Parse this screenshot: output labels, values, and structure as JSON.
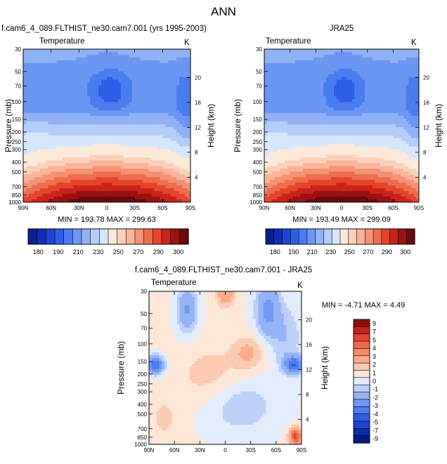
{
  "page_title": "ANN",
  "palette_abs": [
    "#0a1e8c",
    "#0f2eb4",
    "#1f45d6",
    "#2e5ee6",
    "#4a7cf0",
    "#6b97f3",
    "#8fb2f6",
    "#b3cdf9",
    "#d6e6fc",
    "#fde9da",
    "#fbd0b8",
    "#f8b497",
    "#f49276",
    "#ee6d4f",
    "#e3452c",
    "#c8241a",
    "#9a1212",
    "#6b0a0a"
  ],
  "palette_diff": [
    "#071a80",
    "#0c2ba8",
    "#1a43cf",
    "#2e5ee6",
    "#4c7ded",
    "#7098f1",
    "#95b4f6",
    "#bcd0fa",
    "#e3ecfd",
    "#fde6d6",
    "#fbcab0",
    "#f8ab8b",
    "#f48b69",
    "#ee6a4a",
    "#e14630",
    "#c5221a",
    "#8f0e0e"
  ],
  "chart_data": [
    {
      "type": "heatmap",
      "title_left": "f.cam6_4_089.FLTHIST_ne30.cam7.001 (yrs 1995-2003)",
      "variable_label": "Temperature",
      "units_label": "K",
      "xlabel": "",
      "ylabel": "Pressure (mb)",
      "y2label": "Height (km)",
      "x_ticks": [
        "90N",
        "60N",
        "30N",
        "0",
        "30S",
        "60S",
        "90S"
      ],
      "y_ticks": [
        30,
        50,
        70,
        100,
        150,
        200,
        250,
        300,
        400,
        500,
        700,
        850,
        1000
      ],
      "y2_ticks": [
        20,
        16,
        12,
        8,
        4
      ],
      "stats": "MIN = 193.78   MAX = 299.63",
      "colorbar_labels": [
        "180",
        "190",
        "210",
        "230",
        "250",
        "270",
        "290",
        "300"
      ],
      "min": 193.78,
      "max": 299.63
    },
    {
      "type": "heatmap",
      "title_center": "JRA25",
      "variable_label": "Temperature",
      "units_label": "K",
      "ylabel": "Pressure (mb)",
      "y2label": "Height (km)",
      "x_ticks": [
        "90N",
        "60N",
        "30N",
        "0",
        "30S",
        "60S",
        "90S"
      ],
      "y_ticks": [
        30,
        50,
        70,
        100,
        150,
        200,
        250,
        300,
        400,
        500,
        700,
        850,
        1000
      ],
      "y2_ticks": [
        20,
        16,
        12,
        8,
        4
      ],
      "stats": "MIN = 193.49   MAX = 299.09",
      "colorbar_labels": [
        "180",
        "190",
        "210",
        "230",
        "250",
        "270",
        "290",
        "300"
      ],
      "min": 193.49,
      "max": 299.09
    },
    {
      "type": "heatmap",
      "title_center": "f.cam6_4_089.FLTHIST_ne30.cam7.001 - JRA25",
      "variable_label": "Temperature",
      "units_label": "K",
      "ylabel": "Pressure (mb)",
      "y2label": "Height (km)",
      "x_ticks": [
        "90N",
        "60N",
        "30N",
        "0",
        "30S",
        "60S",
        "90S"
      ],
      "y_ticks": [
        30,
        50,
        70,
        100,
        150,
        200,
        250,
        300,
        400,
        500,
        700,
        850,
        1000
      ],
      "y2_ticks": [
        20,
        16,
        12,
        8,
        4
      ],
      "stats": "MIN =  -4.71   MAX =   4.49",
      "colorbar_labels": [
        "9",
        "7",
        "5",
        "4",
        "3",
        "2",
        "1",
        "0",
        "-1",
        "-2",
        "-3",
        "-4",
        "-5",
        "-7",
        "-9"
      ],
      "min": -4.71,
      "max": 4.49
    }
  ]
}
